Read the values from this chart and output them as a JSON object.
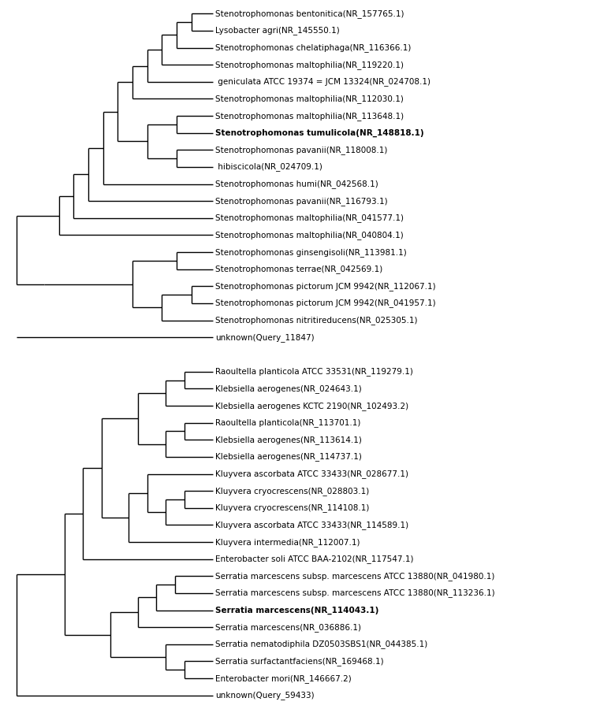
{
  "background": "#ffffff",
  "font_size": 7.5,
  "bold_taxa": [
    "Stenotrophomonas tumulicola(NR_148818.1)",
    "Serratia marcescens(NR_114043.1)"
  ],
  "tree1_taxa": [
    "Stenotrophomonas bentonitica(NR_157765.1)",
    "Lysobacter agri(NR_145550.1)",
    "Stenotrophomonas chelatiphaga(NR_116366.1)",
    "Stenotrophomonas maltophilia(NR_119220.1)",
    " geniculata ATCC 19374 = JCM 13324(NR_024708.1)",
    "Stenotrophomonas maltophilia(NR_112030.1)",
    "Stenotrophomonas maltophilia(NR_113648.1)",
    "Stenotrophomonas tumulicola(NR_148818.1)",
    "Stenotrophomonas pavanii(NR_118008.1)",
    " hibiscicola(NR_024709.1)",
    "Stenotrophomonas humi(NR_042568.1)",
    "Stenotrophomonas pavanii(NR_116793.1)",
    "Stenotrophomonas maltophilia(NR_041577.1)",
    "Stenotrophomonas maltophilia(NR_040804.1)",
    "Stenotrophomonas ginsengisoli(NR_113981.1)",
    "Stenotrophomonas terrae(NR_042569.1)",
    "Stenotrophomonas pictorum JCM 9942(NR_112067.1)",
    "Stenotrophomonas pictorum JCM 9942(NR_041957.1)",
    "Stenotrophomonas nitritireducens(NR_025305.1)",
    "unknown(Query_11847)"
  ],
  "tree2_taxa": [
    "Raoultella planticola ATCC 33531(NR_119279.1)",
    "Klebsiella aerogenes(NR_024643.1)",
    "Klebsiella aerogenes KCTC 2190(NR_102493.2)",
    "Raoultella planticola(NR_113701.1)",
    "Klebsiella aerogenes(NR_113614.1)",
    "Klebsiella aerogenes(NR_114737.1)",
    "Kluyvera ascorbata ATCC 33433(NR_028677.1)",
    "Kluyvera cryocrescens(NR_028803.1)",
    "Kluyvera cryocrescens(NR_114108.1)",
    "Kluyvera ascorbata ATCC 33433(NR_114589.1)",
    "Kluyvera intermedia(NR_112007.1)",
    "Enterobacter soli ATCC BAA-2102(NR_117547.1)",
    "Serratia marcescens subsp. marcescens ATCC 13880(NR_041980.1)",
    "Serratia marcescens subsp. marcescens ATCC 13880(NR_113236.1)",
    "Serratia marcescens(NR_114043.1)",
    "Serratia marcescens(NR_036886.1)",
    "Serratia nematodiphila DZ0503SBS1(NR_044385.1)",
    "Serratia surfactantfaciens(NR_169468.1)",
    "Enterobacter mori(NR_146667.2)",
    "unknown(Query_59433)"
  ],
  "line_color": "#000000",
  "line_width": 1.0,
  "text_color": "#000000",
  "xlim": [
    -0.05,
    1.05
  ],
  "ylim": [
    -0.8,
    19.8
  ]
}
